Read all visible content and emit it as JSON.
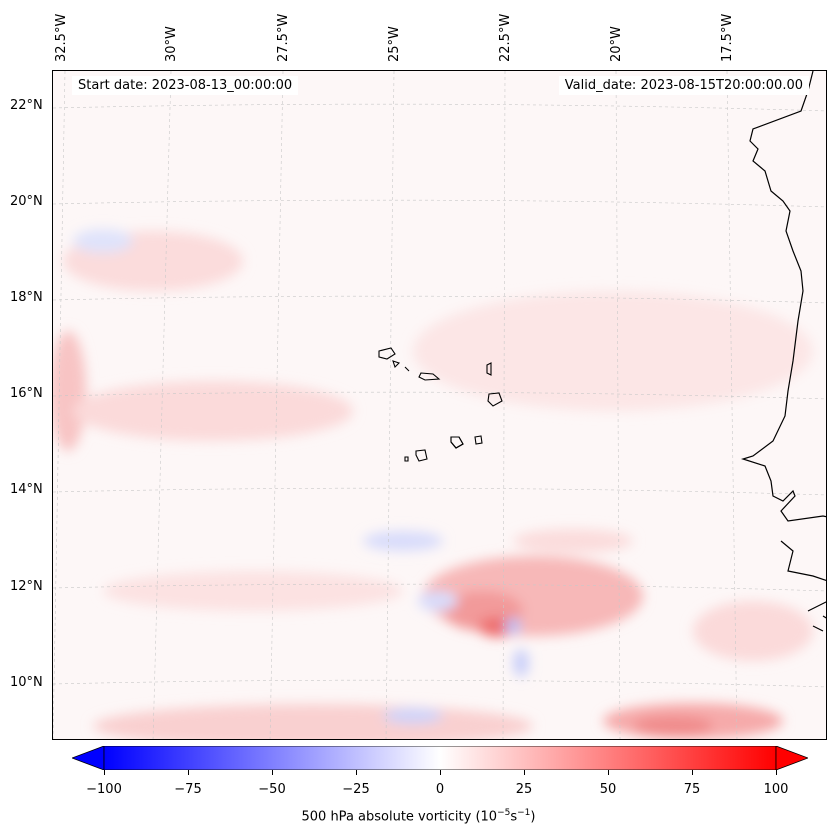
{
  "map": {
    "start_date": "Start date: 2023-08-13_00:00:00",
    "valid_date": "Valid_date: 2023-08-15T20:00:00.00",
    "lon_labels": [
      "32.5°W",
      "30°W",
      "27.5°W",
      "25°W",
      "22.5°W",
      "20°W",
      "17.5°W"
    ],
    "lat_labels": [
      "22°N",
      "20°N",
      "18°N",
      "16°N",
      "14°N",
      "12°N",
      "10°N"
    ]
  },
  "colorbar": {
    "ticks": [
      "−100",
      "−75",
      "−50",
      "−25",
      "0",
      "25",
      "50",
      "75",
      "100"
    ],
    "label_prefix": "500 hPa absolute vorticity (10",
    "label_exp1": "−5",
    "label_mid": "s",
    "label_exp2": "−1",
    "label_suffix": ")",
    "vmin": -100,
    "vmax": 100,
    "color_neg": "#0000ff",
    "color_zero": "#ffffff",
    "color_pos": "#ff0000"
  }
}
